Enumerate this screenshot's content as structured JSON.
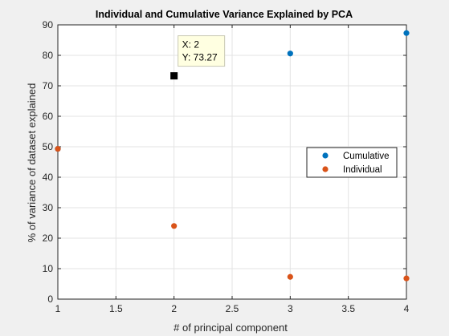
{
  "chart_data": {
    "type": "scatter",
    "title": "Individual and Cumulative Variance Explained by PCA",
    "xlabel": "# of principal component",
    "ylabel": "% of variance of dataset explained",
    "xlim": [
      1,
      4
    ],
    "ylim": [
      0,
      90
    ],
    "xticks": [
      1,
      1.5,
      2,
      2.5,
      3,
      3.5,
      4
    ],
    "xtick_labels": [
      "1",
      "1.5",
      "2",
      "2.5",
      "3",
      "3.5",
      "4"
    ],
    "yticks": [
      0,
      10,
      20,
      30,
      40,
      50,
      60,
      70,
      80,
      90
    ],
    "ytick_labels": [
      "0",
      "10",
      "20",
      "30",
      "40",
      "50",
      "60",
      "70",
      "80",
      "90"
    ],
    "grid": true,
    "legend_location": "right",
    "series": [
      {
        "name": "Cumulative",
        "color": "#0072bd",
        "x": [
          1,
          2,
          3,
          4
        ],
        "y": [
          49.3,
          73.27,
          80.6,
          87.3
        ]
      },
      {
        "name": "Individual",
        "color": "#d95319",
        "x": [
          1,
          2,
          3,
          4
        ],
        "y": [
          49.3,
          24.0,
          7.3,
          6.8
        ]
      }
    ],
    "datatip": {
      "x": 2,
      "y": 73.27,
      "lines": [
        "X: 2",
        "Y: 73.27"
      ]
    }
  }
}
